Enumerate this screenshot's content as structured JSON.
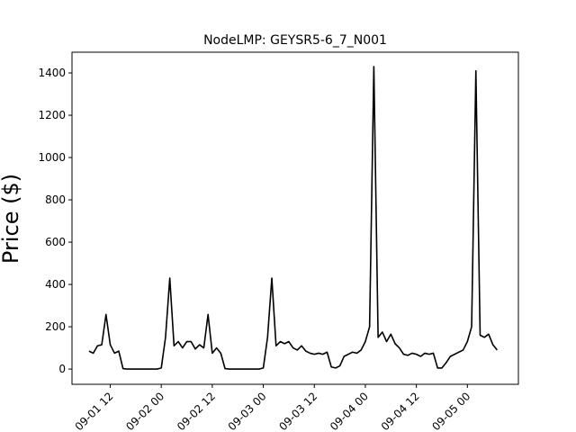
{
  "chart_data": {
    "type": "line",
    "title": "NodeLMP: GEYSR5-6_7_N001",
    "ylabel": "Price ($)",
    "x": [
      "09-01 07",
      "09-01 08",
      "09-01 09",
      "09-01 10",
      "09-01 11",
      "09-01 12",
      "09-01 13",
      "09-01 14",
      "09-01 15",
      "09-01 16",
      "09-01 17",
      "09-01 18",
      "09-01 19",
      "09-01 20",
      "09-01 21",
      "09-01 22",
      "09-01 23",
      "09-02 00",
      "09-02 01",
      "09-02 02",
      "09-02 03",
      "09-02 04",
      "09-02 05",
      "09-02 06",
      "09-02 07",
      "09-02 08",
      "09-02 09",
      "09-02 10",
      "09-02 11",
      "09-02 12",
      "09-02 13",
      "09-02 14",
      "09-02 15",
      "09-02 16",
      "09-02 17",
      "09-02 18",
      "09-02 19",
      "09-02 20",
      "09-02 21",
      "09-02 22",
      "09-02 23",
      "09-03 00",
      "09-03 01",
      "09-03 02",
      "09-03 03",
      "09-03 04",
      "09-03 05",
      "09-03 06",
      "09-03 07",
      "09-03 08",
      "09-03 09",
      "09-03 10",
      "09-03 11",
      "09-03 12",
      "09-03 13",
      "09-03 14",
      "09-03 15",
      "09-03 16",
      "09-03 17",
      "09-03 18",
      "09-03 19",
      "09-03 20",
      "09-03 21",
      "09-03 22",
      "09-03 23",
      "09-04 00",
      "09-04 01",
      "09-04 02",
      "09-04 03",
      "09-04 04",
      "09-04 05",
      "09-04 06",
      "09-04 07",
      "09-04 08",
      "09-04 09",
      "09-04 10",
      "09-04 11",
      "09-04 12",
      "09-04 13",
      "09-04 14",
      "09-04 15",
      "09-04 16",
      "09-04 17",
      "09-04 18",
      "09-04 19",
      "09-04 20",
      "09-04 21",
      "09-04 22",
      "09-04 23",
      "09-05 00",
      "09-05 01",
      "09-05 02",
      "09-05 03",
      "09-05 04",
      "09-05 05",
      "09-05 06",
      "09-05 07"
    ],
    "series": [
      {
        "color": "#000000",
        "values": [
          85,
          75,
          110,
          115,
          258,
          115,
          75,
          85,
          2,
          0,
          0,
          0,
          0,
          0,
          0,
          0,
          0,
          5,
          150,
          430,
          110,
          130,
          100,
          130,
          130,
          95,
          115,
          100,
          258,
          75,
          100,
          75,
          2,
          0,
          0,
          0,
          0,
          0,
          0,
          0,
          0,
          5,
          150,
          430,
          110,
          130,
          120,
          130,
          100,
          90,
          110,
          85,
          75,
          70,
          75,
          70,
          80,
          10,
          5,
          15,
          60,
          70,
          80,
          75,
          90,
          130,
          200,
          1430,
          150,
          175,
          130,
          165,
          120,
          100,
          70,
          65,
          75,
          70,
          60,
          75,
          70,
          75,
          5,
          5,
          30,
          60,
          70,
          80,
          90,
          130,
          200,
          1410,
          160,
          150,
          165,
          115,
          90
        ]
      }
    ],
    "xlim": [
      "09-01 03",
      "09-05 12"
    ],
    "xticks": [
      "09-01 12",
      "09-02 00",
      "09-02 12",
      "09-03 00",
      "09-03 12",
      "09-04 00",
      "09-04 12",
      "09-05 00"
    ],
    "ylim": [
      -72,
      1498
    ],
    "yticks": [
      0,
      200,
      400,
      600,
      800,
      1000,
      1200,
      1400
    ]
  }
}
